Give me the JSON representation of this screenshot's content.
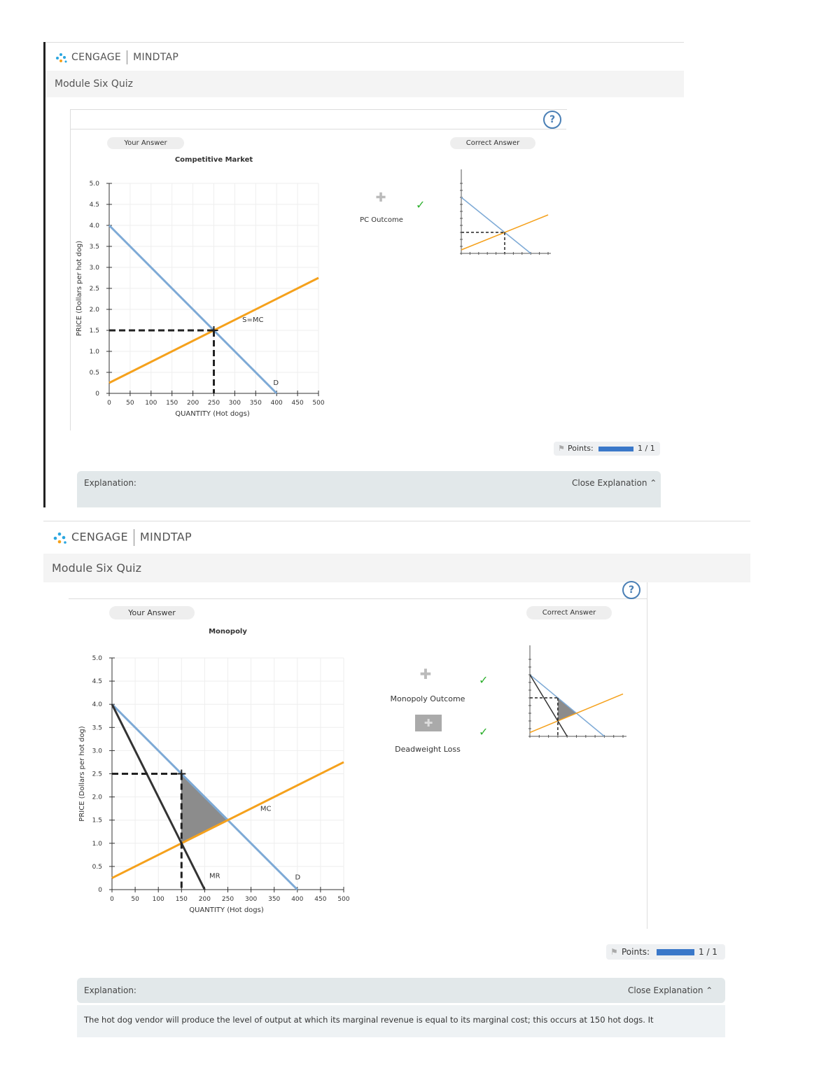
{
  "panels": [
    {
      "brand": {
        "company": "CENGAGE",
        "product": "MINDTAP"
      },
      "page_title": "Module Six Quiz",
      "your_answer_label": "Your Answer",
      "correct_answer_label": "Correct Answer",
      "help_label": "?",
      "legend": [
        {
          "label": "PC Outcome",
          "correct": true
        }
      ],
      "points_label": "Points:",
      "points_value": "1 / 1",
      "points_fraction": 1.0,
      "explanation_label": "Explanation:",
      "close_explanation_label": "Close Explanation",
      "chart_data": {
        "type": "line",
        "title": "Competitive Market",
        "xlabel": "QUANTITY (Hot dogs)",
        "ylabel": "PRICE (Dollars per hot dog)",
        "xlim": [
          0,
          500
        ],
        "ylim": [
          0,
          5.0
        ],
        "xticks": [
          "0",
          "50",
          "100",
          "150",
          "200",
          "250",
          "300",
          "350",
          "400",
          "450",
          "500"
        ],
        "yticks": [
          "0",
          "0.5",
          "1.0",
          "1.5",
          "2.0",
          "2.5",
          "3.0",
          "3.5",
          "4.0",
          "4.5",
          "5.0"
        ],
        "series": [
          {
            "name": "D",
            "color": "#7eaad6",
            "points": [
              [
                0,
                4.0
              ],
              [
                400,
                0
              ]
            ]
          },
          {
            "name": "S=MC",
            "color": "#f5a11c",
            "points": [
              [
                0,
                0.25
              ],
              [
                500,
                2.75
              ]
            ]
          }
        ],
        "equilibrium": {
          "x": 250,
          "y": 1.5
        }
      }
    },
    {
      "brand": {
        "company": "CENGAGE",
        "product": "MINDTAP"
      },
      "page_title": "Module Six Quiz",
      "your_answer_label": "Your Answer",
      "correct_answer_label": "Correct Answer",
      "help_label": "?",
      "legend": [
        {
          "label": "Monopoly Outcome",
          "correct": true
        },
        {
          "label": "Deadweight Loss",
          "correct": true
        }
      ],
      "points_label": "Points:",
      "points_value": "1 / 1",
      "points_fraction": 1.0,
      "explanation_label": "Explanation:",
      "close_explanation_label": "Close Explanation",
      "explanation_text": "The hot dog vendor will produce the level of output at which its marginal revenue is equal to its marginal cost; this occurs at 150 hot dogs. It",
      "chart_data": {
        "type": "line",
        "title": "Monopoly",
        "xlabel": "QUANTITY (Hot dogs)",
        "ylabel": "PRICE (Dollars per hot dog)",
        "xlim": [
          0,
          500
        ],
        "ylim": [
          0,
          5.0
        ],
        "xticks": [
          "0",
          "50",
          "100",
          "150",
          "200",
          "250",
          "300",
          "350",
          "400",
          "450",
          "500"
        ],
        "yticks": [
          "0",
          "0.5",
          "1.0",
          "1.5",
          "2.0",
          "2.5",
          "3.0",
          "3.5",
          "4.0",
          "4.5",
          "5.0"
        ],
        "series": [
          {
            "name": "D",
            "color": "#7eaad6",
            "points": [
              [
                0,
                4.0
              ],
              [
                400,
                0
              ]
            ]
          },
          {
            "name": "MC",
            "color": "#f5a11c",
            "points": [
              [
                0,
                0.25
              ],
              [
                500,
                2.75
              ]
            ]
          },
          {
            "name": "MR",
            "color": "#333333",
            "points": [
              [
                0,
                4.0
              ],
              [
                200,
                0
              ]
            ]
          }
        ],
        "monopoly_outcome": {
          "x": 150,
          "y": 2.5
        },
        "mr_mc_intersection": {
          "x": 150,
          "y": 1.0
        },
        "deadweight_loss": [
          [
            150,
            2.5
          ],
          [
            150,
            1.0
          ],
          [
            250,
            1.5
          ]
        ]
      }
    }
  ]
}
